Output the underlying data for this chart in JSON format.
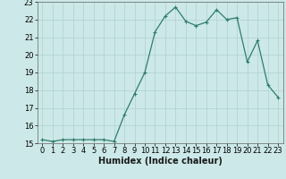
{
  "x": [
    0,
    1,
    2,
    3,
    4,
    5,
    6,
    7,
    8,
    9,
    10,
    11,
    12,
    13,
    14,
    15,
    16,
    17,
    18,
    19,
    20,
    21,
    22,
    23
  ],
  "y": [
    15.2,
    15.1,
    15.2,
    15.2,
    15.2,
    15.2,
    15.2,
    15.1,
    16.6,
    17.8,
    19.0,
    21.3,
    22.2,
    22.7,
    21.9,
    21.65,
    21.85,
    22.55,
    22.0,
    22.1,
    19.6,
    20.8,
    18.3,
    17.6
  ],
  "line_color": "#2e7d6e",
  "marker": "+",
  "markersize": 3,
  "markeredgewidth": 0.8,
  "linewidth": 0.9,
  "bg_color": "#cce8e8",
  "grid_color": "#b0d0d0",
  "xlabel": "Humidex (Indice chaleur)",
  "xlabel_fontsize": 7,
  "ylim": [
    15,
    23
  ],
  "xlim": [
    -0.5,
    23.5
  ],
  "yticks": [
    15,
    16,
    17,
    18,
    19,
    20,
    21,
    22,
    23
  ],
  "xticks": [
    0,
    1,
    2,
    3,
    4,
    5,
    6,
    7,
    8,
    9,
    10,
    11,
    12,
    13,
    14,
    15,
    16,
    17,
    18,
    19,
    20,
    21,
    22,
    23
  ],
  "tick_fontsize": 6,
  "spine_color": "#666666"
}
